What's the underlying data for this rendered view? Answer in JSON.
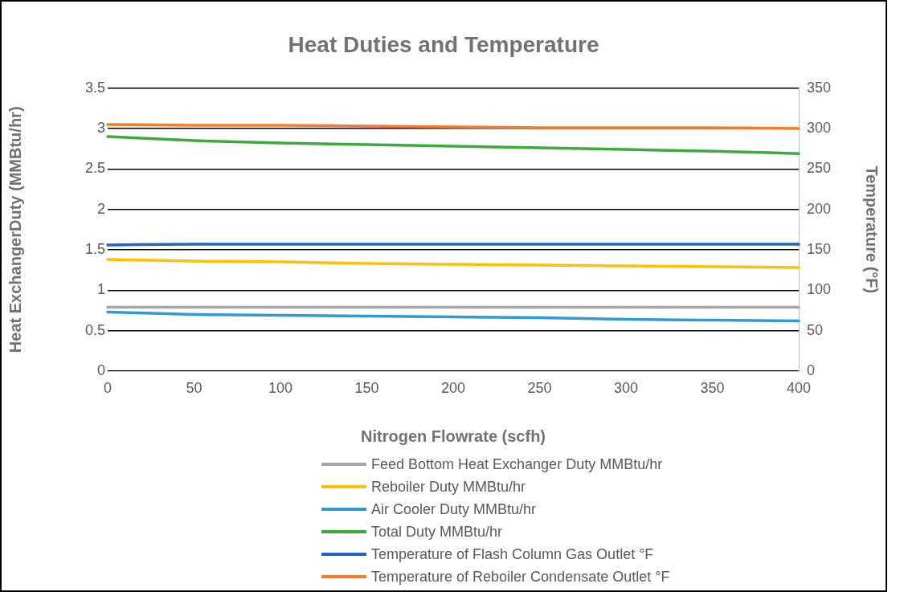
{
  "chart_data": {
    "type": "line",
    "title": "Heat Duties and Temperature",
    "xlabel": "Nitrogen Flowrate (scfh)",
    "ylabel": "Heat ExchangerDuty (MMBtu/hr)",
    "y2label": "Temperature (°F)",
    "x": [
      0,
      50,
      100,
      150,
      200,
      250,
      300,
      350,
      400
    ],
    "xlim": [
      0,
      400
    ],
    "xticks": [
      0,
      50,
      100,
      150,
      200,
      250,
      300,
      350,
      400
    ],
    "ylim": [
      0,
      3.5
    ],
    "yticks": [
      0,
      0.5,
      1,
      1.5,
      2,
      2.5,
      3,
      3.5
    ],
    "y2lim": [
      0,
      350
    ],
    "y2ticks": [
      0,
      50,
      100,
      150,
      200,
      250,
      300,
      350
    ],
    "grid": "y",
    "legend": "bottom",
    "marker": "none",
    "line_style": "solid",
    "series": [
      {
        "name": "Feed Bottom Heat Exchanger Duty MMBtu/hr",
        "color": "#a5a5a5",
        "values": [
          0.79,
          0.79,
          0.79,
          0.79,
          0.79,
          0.79,
          0.79,
          0.79,
          0.79
        ]
      },
      {
        "name": "Reboiler Duty MMBtu/hr",
        "color": "#ffc000",
        "values": [
          1.38,
          1.36,
          1.35,
          1.33,
          1.32,
          1.31,
          1.3,
          1.29,
          1.28
        ]
      },
      {
        "name": "Air Cooler Duty MMBtu/hr",
        "color": "#2e9bd6",
        "values": [
          0.73,
          0.7,
          0.69,
          0.68,
          0.67,
          0.66,
          0.64,
          0.63,
          0.62
        ]
      },
      {
        "name": "Total Duty MMBtu/hr",
        "color": "#3cab3c",
        "values": [
          2.9,
          2.85,
          2.82,
          2.8,
          2.78,
          2.76,
          2.74,
          2.72,
          2.69
        ]
      },
      {
        "name": "Temperature of Flash Column Gas Outlet °F",
        "color": "#1a66cc",
        "axis": "y2",
        "values": [
          156,
          157,
          157,
          157,
          157,
          157,
          157,
          157,
          157
        ]
      },
      {
        "name": "Temperature of Reboiler Condensate Outlet °F",
        "color": "#f77b29",
        "axis": "y2",
        "values": [
          305,
          304,
          304,
          303,
          302,
          301,
          301,
          301,
          300
        ]
      }
    ]
  }
}
